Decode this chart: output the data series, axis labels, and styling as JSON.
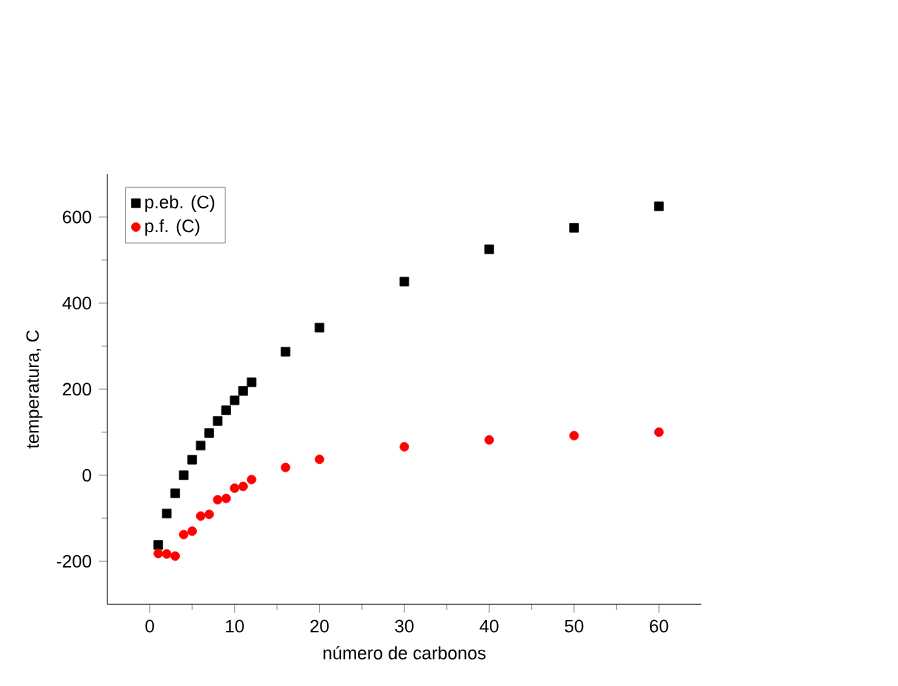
{
  "chart_data": {
    "type": "scatter",
    "xlabel": "número de carbonos",
    "ylabel": "temperatura, C",
    "xlim": [
      -5,
      65
    ],
    "xticks": [
      0,
      10,
      20,
      30,
      40,
      50,
      60
    ],
    "ylim": [
      -300,
      700
    ],
    "yticks": [
      -200,
      0,
      200,
      400,
      600
    ],
    "legend": "top left",
    "grid": false,
    "series": [
      {
        "name": "p.eb. (C)",
        "color": "#000000",
        "marker": "square",
        "x": [
          1,
          2,
          3,
          4,
          5,
          6,
          7,
          8,
          9,
          10,
          11,
          12,
          16,
          20,
          30,
          40,
          50,
          60
        ],
        "values": [
          -162,
          -89,
          -42,
          0,
          36,
          69,
          98,
          126,
          151,
          174,
          196,
          216,
          287,
          343,
          450,
          525,
          575,
          625
        ]
      },
      {
        "name": "p.f. (C)",
        "color": "#ff0000",
        "marker": "circle",
        "x": [
          1,
          2,
          3,
          4,
          5,
          6,
          7,
          8,
          9,
          10,
          11,
          12,
          16,
          20,
          30,
          40,
          50,
          60
        ],
        "values": [
          -182,
          -183,
          -188,
          -138,
          -130,
          -95,
          -91,
          -57,
          -54,
          -30,
          -26,
          -10,
          18,
          37,
          66,
          82,
          92,
          100
        ]
      }
    ]
  }
}
